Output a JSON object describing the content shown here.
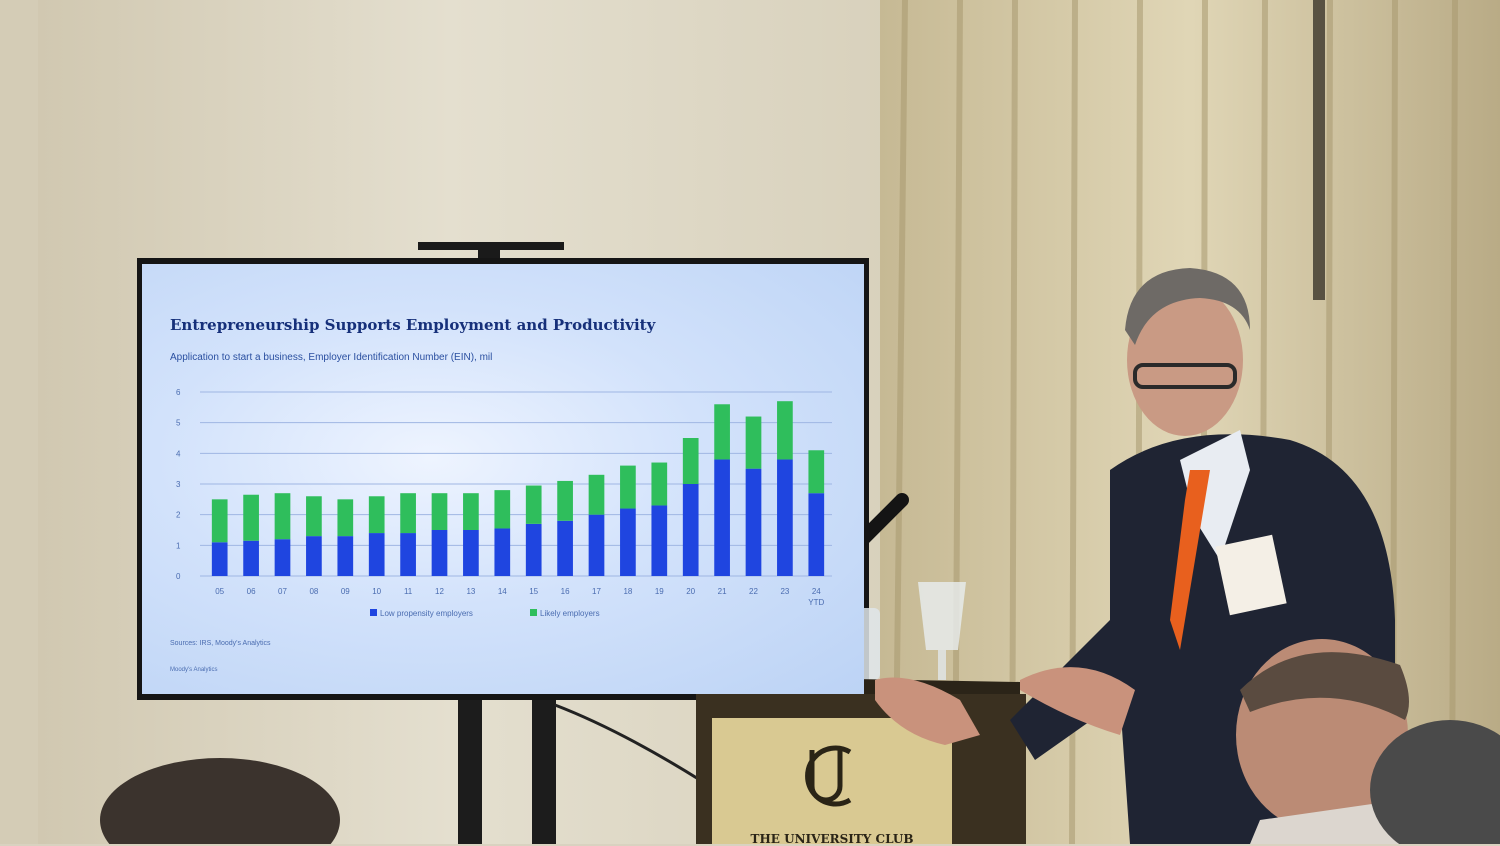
{
  "slide": {
    "title": "Entrepreneurship Supports Employment and Productivity",
    "subtitle": "Application to start a business, Employer Identification Number (EIN), mil",
    "source": "Sources: IRS, Moody's Analytics",
    "footer": "Moody's Analytics"
  },
  "podium": {
    "sign": "THE UNIVERSITY CLUB"
  },
  "colors": {
    "low": "#1f45e0",
    "likely": "#2fbe5c",
    "grid": "#9fb6e3",
    "tick": "#4a6cb0"
  },
  "chart_data": {
    "type": "bar",
    "stacked": true,
    "categories": [
      "05",
      "06",
      "07",
      "08",
      "09",
      "10",
      "11",
      "12",
      "13",
      "14",
      "15",
      "16",
      "17",
      "18",
      "19",
      "20",
      "21",
      "22",
      "23",
      "24\nYTD"
    ],
    "series": [
      {
        "name": "Low propensity employers",
        "values": [
          1.1,
          1.15,
          1.2,
          1.3,
          1.3,
          1.4,
          1.4,
          1.5,
          1.5,
          1.55,
          1.7,
          1.8,
          2.0,
          2.2,
          2.3,
          3.0,
          3.8,
          3.5,
          3.8,
          2.7
        ]
      },
      {
        "name": "Likely employers",
        "values": [
          1.4,
          1.5,
          1.5,
          1.3,
          1.2,
          1.2,
          1.3,
          1.2,
          1.2,
          1.25,
          1.25,
          1.3,
          1.3,
          1.4,
          1.4,
          1.5,
          1.8,
          1.7,
          1.9,
          1.4
        ]
      }
    ],
    "ylim": [
      0,
      6
    ],
    "yticks": [
      0,
      1,
      2,
      3,
      4,
      5,
      6
    ],
    "legend": "bottom",
    "grid": true
  }
}
